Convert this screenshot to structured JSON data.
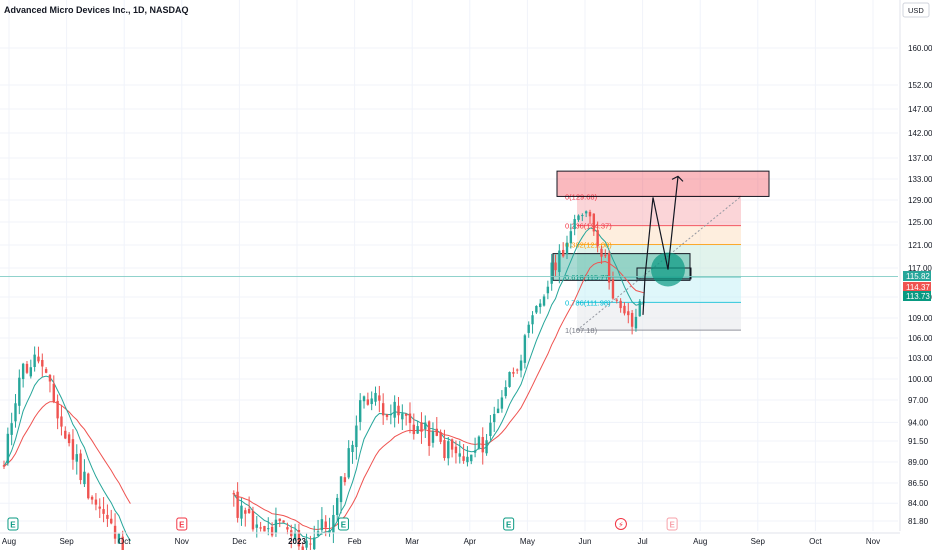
{
  "header": {
    "title": "Advanced Micro Devices Inc., 1D, NASDAQ",
    "currency": "USD"
  },
  "colors": {
    "up": "#26a69a",
    "down": "#ef5350",
    "ema_fast": "#26a69a",
    "ema_slow": "#ef5350",
    "grid": "#f0f3fa",
    "axis_text": "#131722",
    "tag_last": "#26a69a",
    "tag_prev": "#ef5350",
    "tag_low": "#089981",
    "crosshair": "#80cbc4"
  },
  "chart_data": {
    "type": "candlestick",
    "symbol": "AMD",
    "interval": "1D",
    "exchange": "NASDAQ",
    "y_axis": {
      "min": 80,
      "max": 164,
      "ticks": [
        81.8,
        84.0,
        86.5,
        89.0,
        91.5,
        94.0,
        97.0,
        100.0,
        103.0,
        106.0,
        109.0,
        113.0,
        117.0,
        121.0,
        125.0,
        129.0,
        133.0,
        137.0,
        142.0,
        147.0,
        152.0,
        160.0
      ],
      "tick_labels": [
        "81.80",
        "84.00",
        "86.50",
        "89.00",
        "91.50",
        "94.00",
        "97.00",
        "100.00",
        "103.00",
        "106.00",
        "109.00",
        "113.00",
        "117.00",
        "121.00",
        "125.00",
        "129.00",
        "133.00",
        "137.00",
        "142.00",
        "147.00",
        "152.00",
        "160.00"
      ]
    },
    "x_axis": {
      "labels": [
        "Aug",
        "Sep",
        "Oct",
        "Nov",
        "Dec",
        "2023",
        "Feb",
        "Mar",
        "Apr",
        "May",
        "Jun",
        "Jul",
        "Aug",
        "Sep",
        "Oct",
        "Nov"
      ],
      "bold_labels": [
        "2023"
      ]
    },
    "price_tags": [
      {
        "label": "115.82",
        "value": 115.82,
        "kind": "last"
      },
      {
        "label": "114.37",
        "value": 114.37,
        "kind": "prev"
      },
      {
        "label": "113.73",
        "value": 113.73,
        "kind": "low"
      }
    ],
    "fibonacci": [
      {
        "ratio": "0",
        "label": "0(129.68)",
        "price": 129.68,
        "color": "#f23645"
      },
      {
        "ratio": "0.236",
        "label": "0.236(124.37)",
        "price": 124.37,
        "color": "#f23645"
      },
      {
        "ratio": "0.382",
        "label": "0.382(121.08)",
        "price": 121.08,
        "color": "#ff9800"
      },
      {
        "ratio": "0.618",
        "label": "0.618(115.77)",
        "price": 115.77,
        "color": "#089981"
      },
      {
        "ratio": "0.786",
        "label": "0.786(111.98)",
        "price": 111.98,
        "color": "#00bcd4"
      },
      {
        "ratio": "1",
        "label": "1(107.18)",
        "price": 107.18,
        "color": "#787b86"
      }
    ],
    "zones": [
      {
        "name": "supply",
        "top": 134.5,
        "bottom": 129.68,
        "color": "#f23645"
      },
      {
        "name": "demand",
        "top": 119.5,
        "bottom": 115.3,
        "color": "#089981"
      }
    ],
    "projection_path": [
      115.8,
      129.5,
      116.8,
      133.5
    ],
    "markers": [
      {
        "kind": "earnings",
        "glyph": "E",
        "color": "#089981",
        "offset": 0.01
      },
      {
        "kind": "earnings",
        "glyph": "E",
        "color": "#f23645",
        "offset": 0.198
      },
      {
        "kind": "earnings",
        "glyph": "E",
        "color": "#089981",
        "offset": 0.378
      },
      {
        "kind": "earnings",
        "glyph": "E",
        "color": "#089981",
        "offset": 0.562
      },
      {
        "kind": "dividend",
        "glyph": "⚡",
        "color": "#f23645",
        "offset": 0.687
      },
      {
        "kind": "earnings",
        "glyph": "E",
        "color": "#f7a1a9",
        "offset": 0.744
      }
    ],
    "segments": [
      {
        "from": 0,
        "to": 4,
        "start": 88,
        "end": 101
      },
      {
        "from": 4,
        "to": 9,
        "start": 101,
        "end": 103
      },
      {
        "from": 9,
        "to": 16,
        "start": 103,
        "end": 92
      },
      {
        "from": 16,
        "to": 24,
        "start": 92,
        "end": 84
      },
      {
        "from": 24,
        "to": 34,
        "start": 84,
        "end": 76
      },
      {
        "from": 60,
        "to": 67,
        "start": 84,
        "end": 80
      },
      {
        "from": 67,
        "to": 72,
        "start": 80,
        "end": 81
      },
      {
        "from": 72,
        "to": 78,
        "start": 81,
        "end": 79
      },
      {
        "from": 78,
        "to": 86,
        "start": 79,
        "end": 82
      },
      {
        "from": 86,
        "to": 94,
        "start": 82,
        "end": 98
      },
      {
        "from": 94,
        "to": 100,
        "start": 98,
        "end": 96
      },
      {
        "from": 100,
        "to": 106,
        "start": 96,
        "end": 94
      },
      {
        "from": 106,
        "to": 114,
        "start": 94,
        "end": 91
      },
      {
        "from": 114,
        "to": 121,
        "start": 91,
        "end": 89
      },
      {
        "from": 121,
        "to": 126,
        "start": 89,
        "end": 92
      },
      {
        "from": 126,
        "to": 130,
        "start": 92,
        "end": 98
      },
      {
        "from": 130,
        "to": 136,
        "start": 98,
        "end": 105
      },
      {
        "from": 136,
        "to": 140,
        "start": 105,
        "end": 112
      },
      {
        "from": 140,
        "to": 144,
        "start": 112,
        "end": 118
      },
      {
        "from": 144,
        "to": 148,
        "start": 118,
        "end": 123
      },
      {
        "from": 148,
        "to": 152,
        "start": 123,
        "end": 128
      },
      {
        "from": 152,
        "to": 156,
        "start": 128,
        "end": 120
      },
      {
        "from": 156,
        "to": 161,
        "start": 120,
        "end": 110
      },
      {
        "from": 161,
        "to": 164,
        "start": 110,
        "end": 108
      },
      {
        "from": 164,
        "to": 168,
        "start": 108,
        "end": 114
      }
    ]
  }
}
